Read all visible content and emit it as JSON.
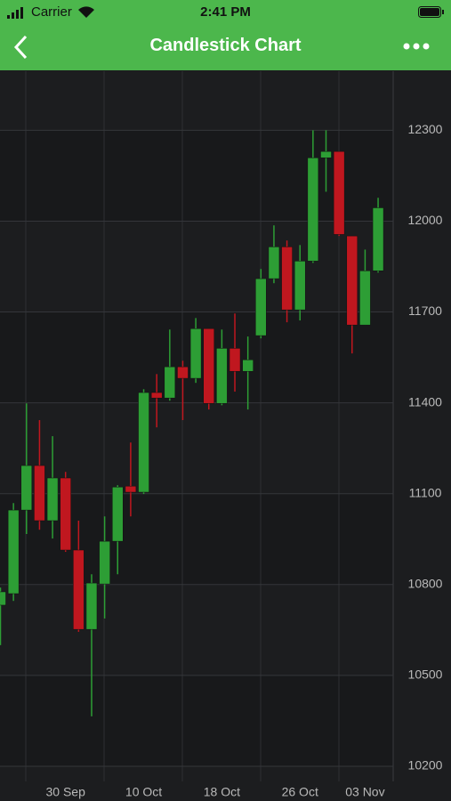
{
  "status_bar": {
    "carrier": "Carrier",
    "time": "2:41 PM"
  },
  "nav_bar": {
    "title": "Candlestick Chart"
  },
  "chart_data": {
    "type": "candlestick",
    "categories": [
      null,
      null,
      null,
      null,
      null,
      "30 Sep",
      null,
      null,
      null,
      null,
      null,
      "10 Oct",
      null,
      null,
      null,
      null,
      null,
      "18 Oct",
      null,
      null,
      null,
      null,
      null,
      "26 Oct",
      null,
      null,
      null,
      null,
      "03 Nov",
      null
    ],
    "open": [
      10732,
      10770,
      11046,
      11193,
      11011,
      11152,
      10914,
      10652,
      10802,
      10943,
      11125,
      11105,
      11434,
      11416,
      11519,
      11481,
      11645,
      11398,
      11580,
      11504,
      11622,
      11810,
      11915,
      11707,
      11868,
      12209,
      12230,
      11951,
      11657,
      11836
    ],
    "high": [
      10790,
      11069,
      11398,
      11343,
      11290,
      11172,
      11011,
      10834,
      11025,
      11128,
      11269,
      11445,
      11495,
      11642,
      11539,
      11680,
      11645,
      11642,
      11695,
      11619,
      11842,
      11986,
      11936,
      11921,
      12300,
      12300,
      12230,
      11951,
      11906,
      12077
    ],
    "low": [
      10600,
      10746,
      10967,
      10981,
      10952,
      10908,
      10644,
      10365,
      10688,
      10834,
      11025,
      11099,
      11319,
      11407,
      11343,
      11466,
      11378,
      11392,
      11437,
      11378,
      11613,
      11795,
      11666,
      11672,
      11862,
      12097,
      11951,
      11563,
      11657,
      11830
    ],
    "close": [
      10776,
      11046,
      11193,
      11011,
      11152,
      10914,
      10652,
      10805,
      10943,
      11122,
      11105,
      11434,
      11416,
      11519,
      11481,
      11645,
      11398,
      11580,
      11504,
      11542,
      11810,
      11915,
      11707,
      11868,
      12209,
      12230,
      11956,
      11657,
      11836,
      12044
    ],
    "up_color": "#2d9e35",
    "down_color": "#c0171f",
    "ylim": [
      10150,
      12495
    ],
    "yticks": [
      10200,
      10500,
      10800,
      11100,
      11400,
      11700,
      12000,
      12300
    ],
    "grid": true
  }
}
